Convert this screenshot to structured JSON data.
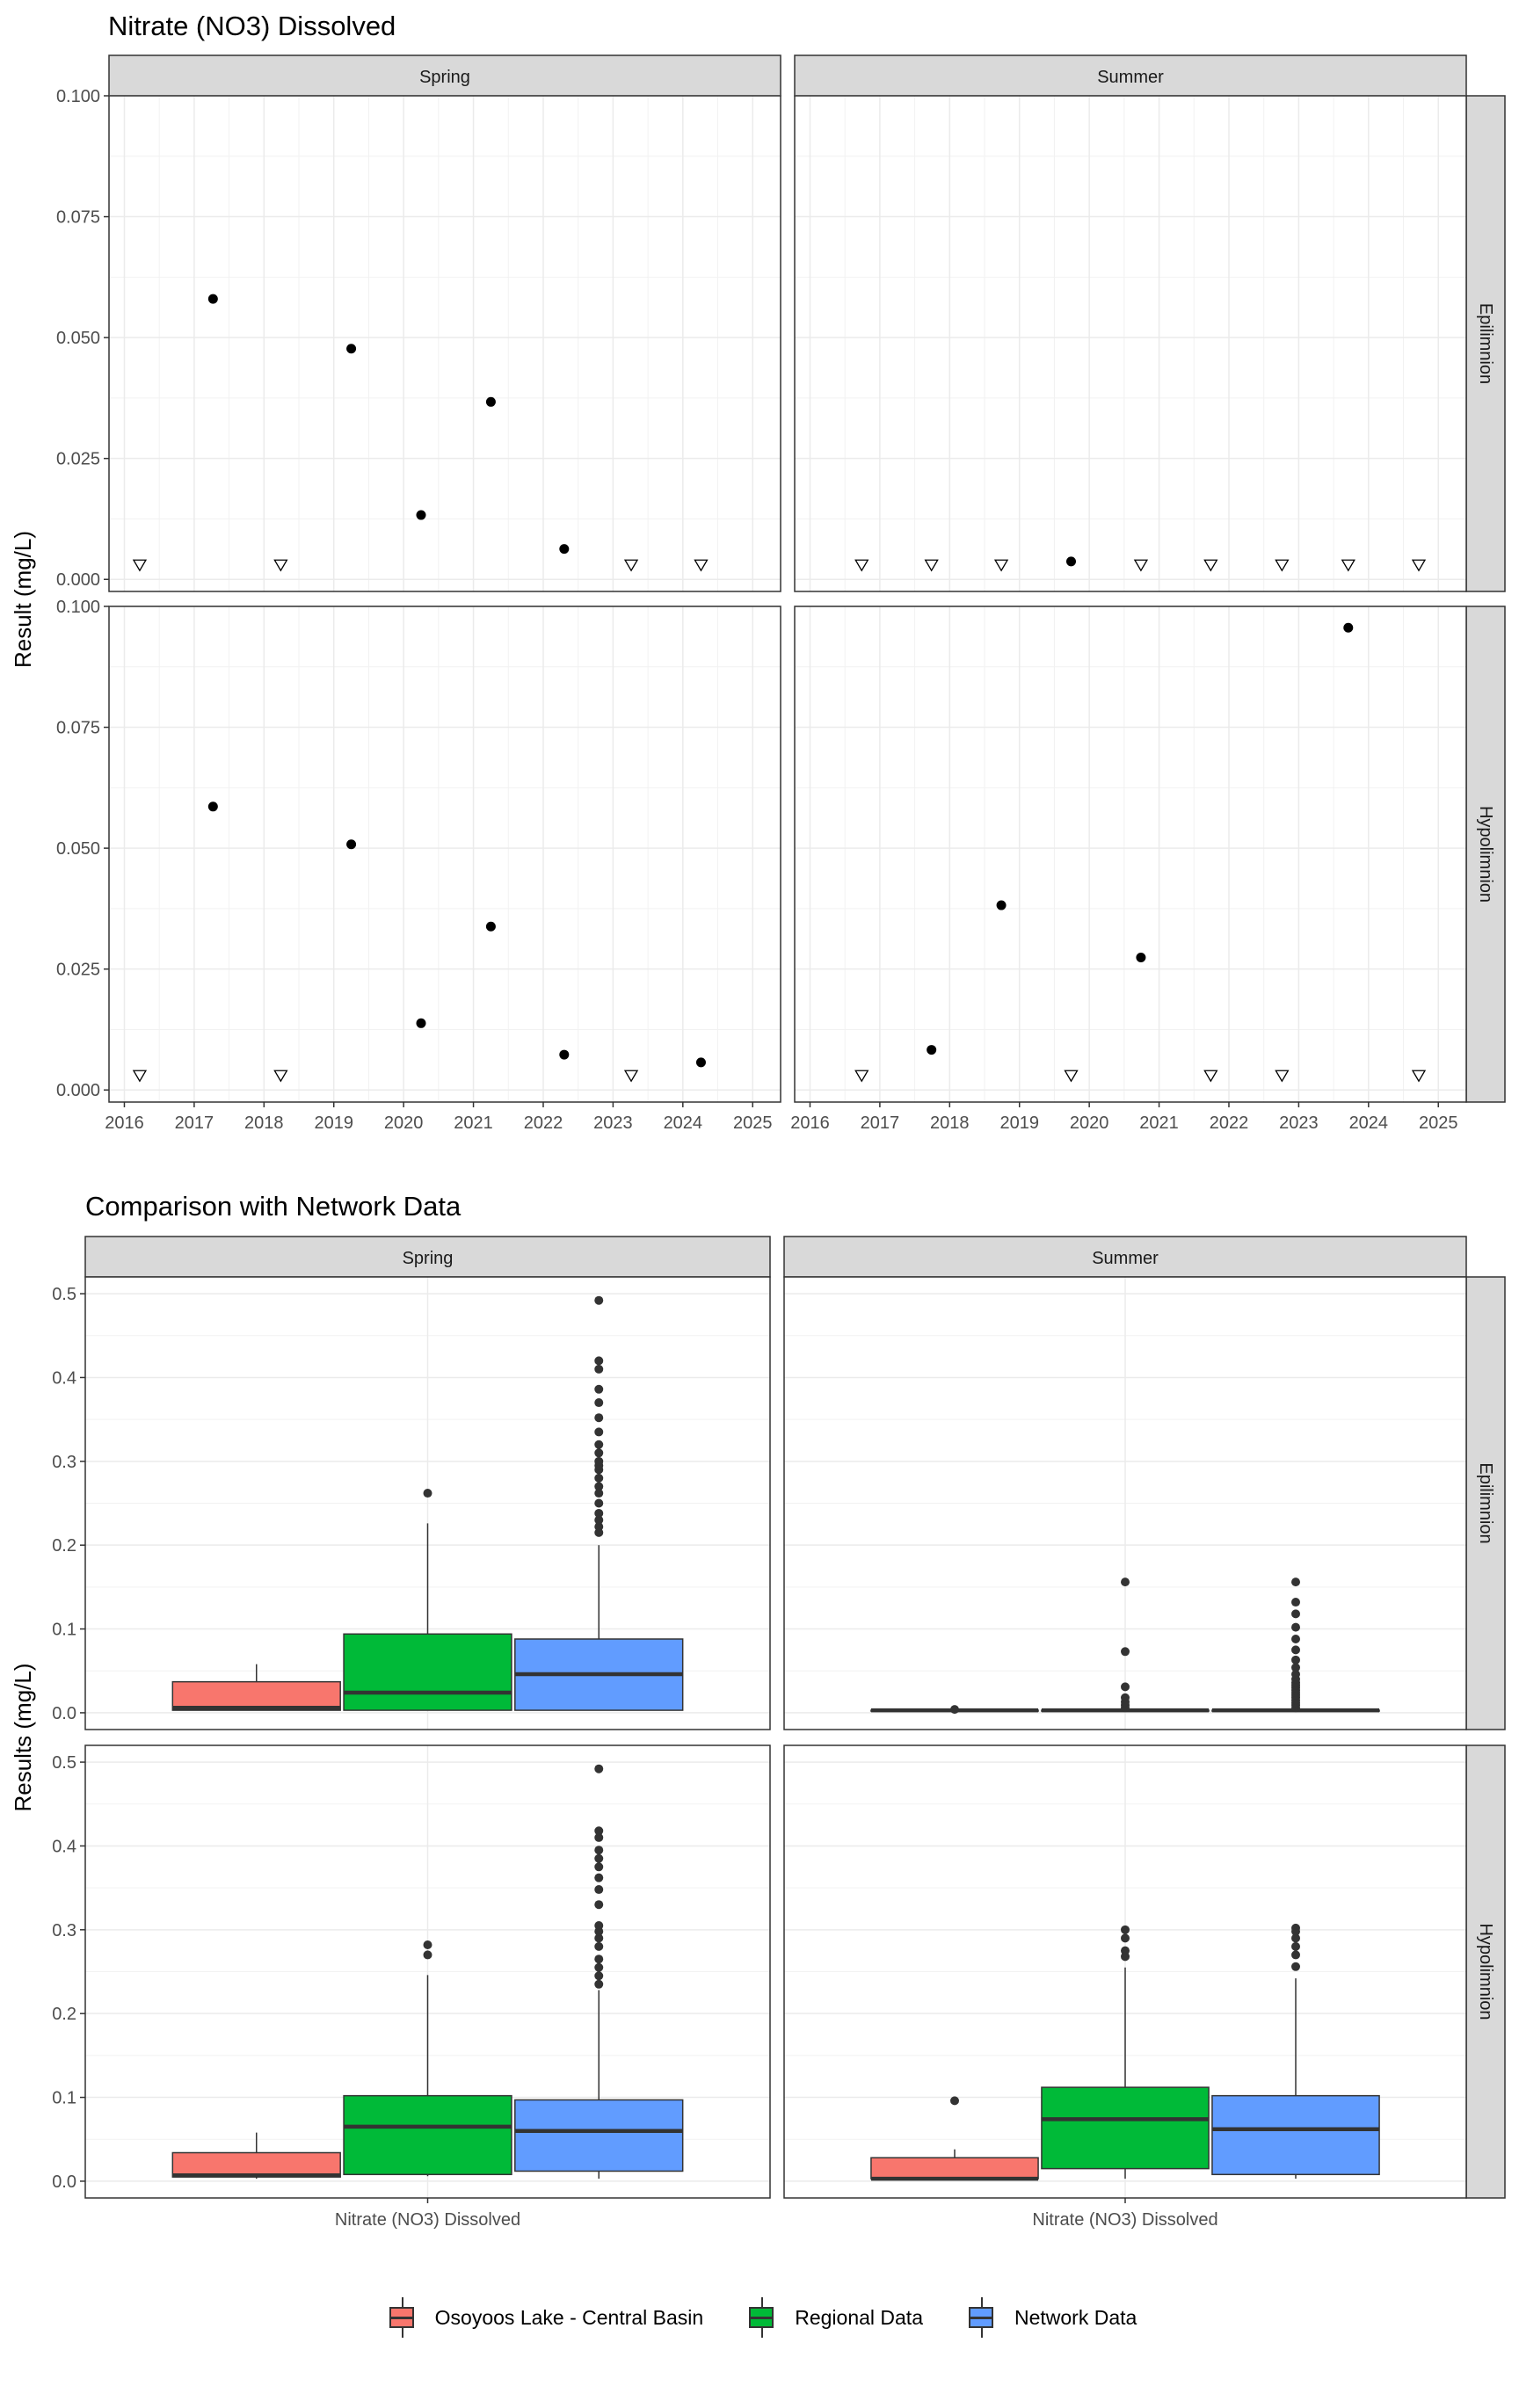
{
  "chart_data": [
    {
      "type": "scatter",
      "title": "Nitrate (NO3) Dissolved",
      "ylabel": "Result (mg/L)",
      "xlabel": "",
      "facet_cols": [
        "Spring",
        "Summer"
      ],
      "facet_rows": [
        "Epilimnion",
        "Hypolimnion"
      ],
      "xlim": [
        2015.78,
        2025.4
      ],
      "ylim": [
        -0.0025,
        0.1
      ],
      "x_ticks": [
        "2016",
        "2017",
        "2018",
        "2019",
        "2020",
        "2021",
        "2022",
        "2023",
        "2024",
        "2025"
      ],
      "y_ticks": [
        "0.000",
        "0.025",
        "0.050",
        "0.075",
        "0.100"
      ],
      "grid": true,
      "marker_legend": {
        "detected": "filled circle",
        "below_detection_limit": "open inverted triangle"
      },
      "panels": [
        {
          "col": "Spring",
          "row": "Epilimnion",
          "points": [
            {
              "x": 2017.27,
              "y": 0.058,
              "detected": true
            },
            {
              "x": 2019.25,
              "y": 0.0477,
              "detected": true
            },
            {
              "x": 2020.25,
              "y": 0.0133,
              "detected": true
            },
            {
              "x": 2021.25,
              "y": 0.0367,
              "detected": true
            },
            {
              "x": 2022.3,
              "y": 0.0063,
              "detected": true
            }
          ],
          "below_detection": [
            2016.22,
            2018.24,
            2023.26,
            2024.26
          ]
        },
        {
          "col": "Summer",
          "row": "Epilimnion",
          "points": [
            {
              "x": 2019.74,
              "y": 0.0037,
              "detected": true
            }
          ],
          "below_detection": [
            2016.74,
            2017.74,
            2018.74,
            2020.74,
            2021.74,
            2022.76,
            2023.71,
            2024.72
          ]
        },
        {
          "col": "Spring",
          "row": "Hypolimnion",
          "points": [
            {
              "x": 2017.27,
              "y": 0.0586,
              "detected": true
            },
            {
              "x": 2019.25,
              "y": 0.0508,
              "detected": true
            },
            {
              "x": 2020.25,
              "y": 0.0138,
              "detected": true
            },
            {
              "x": 2021.25,
              "y": 0.0338,
              "detected": true
            },
            {
              "x": 2022.3,
              "y": 0.0073,
              "detected": true
            },
            {
              "x": 2024.26,
              "y": 0.0057,
              "detected": true
            }
          ],
          "below_detection": [
            2016.22,
            2018.24,
            2023.26
          ]
        },
        {
          "col": "Summer",
          "row": "Hypolimnion",
          "points": [
            {
              "x": 2017.74,
              "y": 0.0083,
              "detected": true
            },
            {
              "x": 2018.74,
              "y": 0.0382,
              "detected": true
            },
            {
              "x": 2020.74,
              "y": 0.0274,
              "detected": true
            },
            {
              "x": 2023.71,
              "y": 0.0956,
              "detected": true
            }
          ],
          "below_detection": [
            2016.74,
            2019.74,
            2021.74,
            2022.76,
            2024.72
          ]
        }
      ]
    },
    {
      "type": "box",
      "title": "Comparison with Network Data",
      "ylabel": "Results (mg/L)",
      "xlabel": "",
      "x_category": "Nitrate (NO3) Dissolved",
      "facet_cols": [
        "Spring",
        "Summer"
      ],
      "facet_rows": [
        "Epilimnion",
        "Hypolimnion"
      ],
      "ylim": [
        -0.02,
        0.52
      ],
      "y_ticks": [
        "0.0",
        "0.1",
        "0.2",
        "0.3",
        "0.4",
        "0.5"
      ],
      "grid": true,
      "legend_position": "bottom",
      "series": [
        {
          "name": "Osoyoos Lake - Central Basin",
          "color": "#F8766D"
        },
        {
          "name": "Regional Data",
          "color": "#00BA38"
        },
        {
          "name": "Network Data",
          "color": "#619CFF"
        }
      ],
      "panels": [
        {
          "col": "Spring",
          "row": "Epilimnion",
          "boxes": [
            {
              "series": "Osoyoos Lake - Central Basin",
              "min": 0.003,
              "q1": 0.003,
              "median": 0.006,
              "q3": 0.037,
              "max": 0.058,
              "outliers": []
            },
            {
              "series": "Regional Data",
              "min": 0.003,
              "q1": 0.003,
              "median": 0.024,
              "q3": 0.094,
              "max": 0.226,
              "outliers": [
                0.262
              ]
            },
            {
              "series": "Network Data",
              "min": 0.003,
              "q1": 0.003,
              "median": 0.046,
              "q3": 0.088,
              "max": 0.2,
              "outliers": [
                0.215,
                0.222,
                0.23,
                0.238,
                0.25,
                0.262,
                0.27,
                0.28,
                0.29,
                0.295,
                0.3,
                0.31,
                0.32,
                0.335,
                0.352,
                0.37,
                0.386,
                0.41,
                0.42,
                0.492
              ]
            }
          ]
        },
        {
          "col": "Summer",
          "row": "Epilimnion",
          "boxes": [
            {
              "series": "Osoyoos Lake - Central Basin",
              "min": 0.003,
              "q1": 0.003,
              "median": 0.003,
              "q3": 0.003,
              "max": 0.003,
              "outliers": [
                0.004
              ]
            },
            {
              "series": "Regional Data",
              "min": 0.003,
              "q1": 0.003,
              "median": 0.003,
              "q3": 0.003,
              "max": 0.003,
              "outliers": [
                0.006,
                0.009,
                0.013,
                0.018,
                0.031,
                0.073,
                0.156
              ]
            },
            {
              "series": "Network Data",
              "min": 0.003,
              "q1": 0.003,
              "median": 0.003,
              "q3": 0.003,
              "max": 0.003,
              "outliers": [
                0.006,
                0.009,
                0.012,
                0.015,
                0.018,
                0.021,
                0.024,
                0.027,
                0.03,
                0.033,
                0.036,
                0.04,
                0.046,
                0.054,
                0.063,
                0.075,
                0.088,
                0.102,
                0.118,
                0.132,
                0.156
              ]
            }
          ]
        },
        {
          "col": "Spring",
          "row": "Hypolimnion",
          "boxes": [
            {
              "series": "Osoyoos Lake - Central Basin",
              "min": 0.003,
              "q1": 0.005,
              "median": 0.007,
              "q3": 0.034,
              "max": 0.058,
              "outliers": []
            },
            {
              "series": "Regional Data",
              "min": 0.006,
              "q1": 0.008,
              "median": 0.065,
              "q3": 0.102,
              "max": 0.246,
              "outliers": [
                0.27,
                0.282
              ]
            },
            {
              "series": "Network Data",
              "min": 0.003,
              "q1": 0.012,
              "median": 0.06,
              "q3": 0.097,
              "max": 0.228,
              "outliers": [
                0.235,
                0.245,
                0.255,
                0.265,
                0.28,
                0.29,
                0.298,
                0.305,
                0.33,
                0.348,
                0.362,
                0.375,
                0.385,
                0.395,
                0.41,
                0.418,
                0.492
              ]
            }
          ]
        },
        {
          "col": "Summer",
          "row": "Hypolimnion",
          "boxes": [
            {
              "series": "Osoyoos Lake - Central Basin",
              "min": 0.003,
              "q1": 0.003,
              "median": 0.003,
              "q3": 0.028,
              "max": 0.038,
              "outliers": [
                0.096
              ]
            },
            {
              "series": "Regional Data",
              "min": 0.003,
              "q1": 0.015,
              "median": 0.074,
              "q3": 0.112,
              "max": 0.255,
              "outliers": [
                0.268,
                0.275,
                0.29,
                0.3
              ]
            },
            {
              "series": "Network Data",
              "min": 0.003,
              "q1": 0.008,
              "median": 0.062,
              "q3": 0.102,
              "max": 0.242,
              "outliers": [
                0.256,
                0.27,
                0.28,
                0.29,
                0.298,
                0.302
              ]
            }
          ]
        }
      ]
    }
  ]
}
